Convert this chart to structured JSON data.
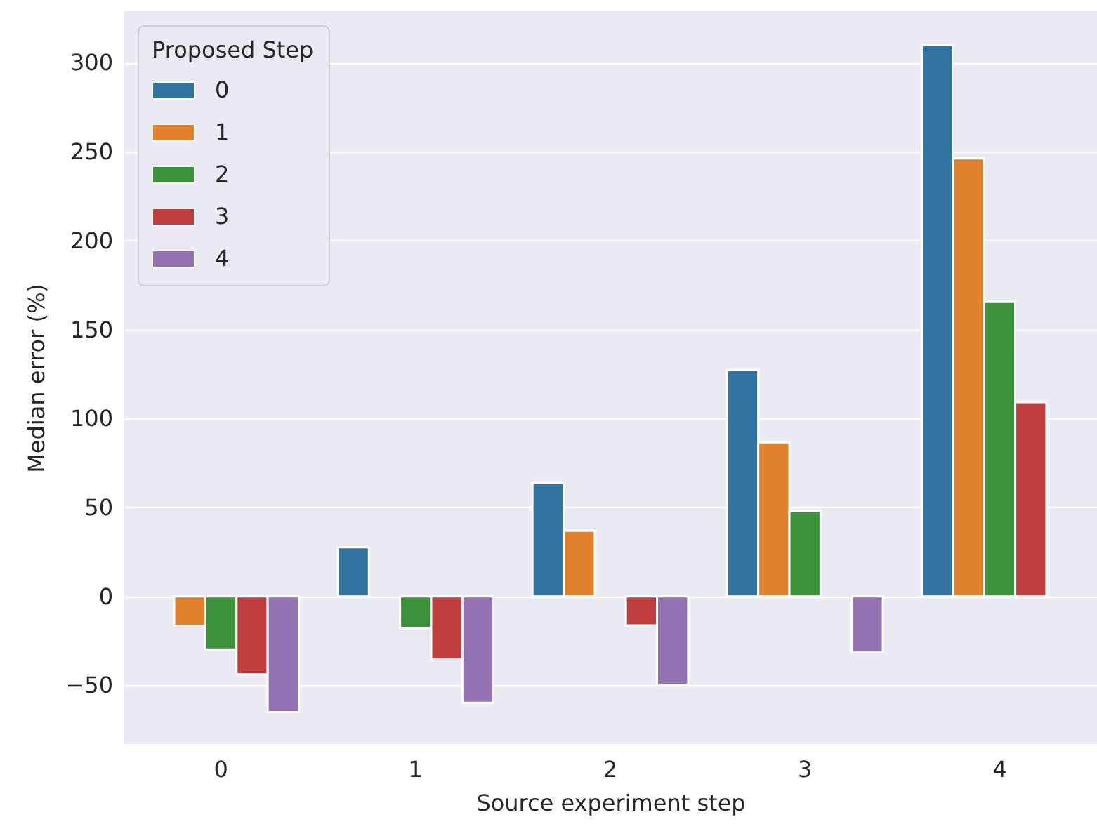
{
  "chart_data": {
    "type": "bar",
    "xlabel": "Source experiment step",
    "ylabel": "Median error (%)",
    "legend_title": "Proposed Step",
    "categories": [
      "0",
      "1",
      "2",
      "3",
      "4"
    ],
    "series": [
      {
        "name": "0",
        "color": "#3274a1",
        "values": [
          null,
          27.6,
          63.7,
          127.2,
          309.9
        ]
      },
      {
        "name": "1",
        "color": "#e1812c",
        "values": [
          -16.6,
          null,
          36.9,
          86.6,
          246.2
        ]
      },
      {
        "name": "2",
        "color": "#3a923a",
        "values": [
          -29.8,
          -17.9,
          null,
          47.9,
          165.9
        ]
      },
      {
        "name": "3",
        "color": "#c03d3e",
        "values": [
          -43.7,
          -35.5,
          -16.3,
          null,
          109.2
        ]
      },
      {
        "name": "4",
        "color": "#9372b2",
        "values": [
          -65,
          -59.8,
          -49.8,
          -31.6,
          null
        ]
      }
    ],
    "ylim": [
      -83,
      329
    ],
    "yticks": [
      -50,
      0,
      50,
      100,
      150,
      200,
      250,
      300
    ],
    "grid": "y",
    "legend": "top left"
  }
}
